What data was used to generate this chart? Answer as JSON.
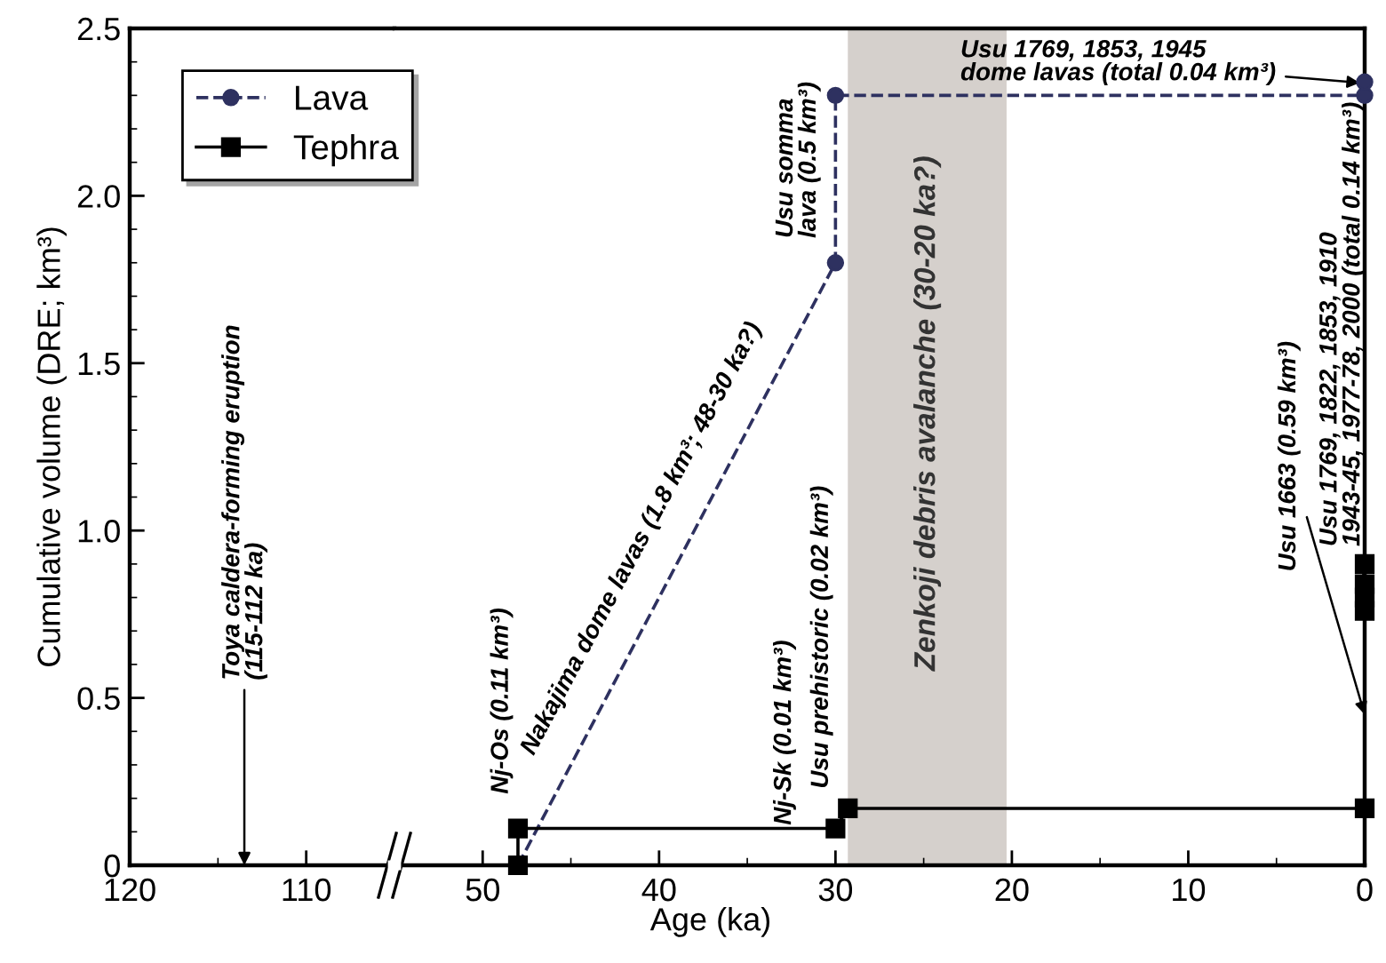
{
  "chart_data": [
    {
      "type": "line",
      "ylabel": "Cumulative volume (DRE; km³)",
      "xlim": [
        120,
        105
      ],
      "xticks": [
        120,
        {
          "value": 115,
          "label": null
        },
        110
      ],
      "ylim": [
        0,
        2.5
      ],
      "yticks": [
        0,
        {
          "value": 0.1,
          "label": null
        },
        {
          "value": 0.2,
          "label": null
        },
        {
          "value": 0.3,
          "label": null
        },
        {
          "value": 0.4,
          "label": null
        },
        0.5,
        {
          "value": 0.6,
          "label": null
        },
        {
          "value": 0.7,
          "label": null
        },
        {
          "value": 0.8,
          "label": null
        },
        {
          "value": 0.9,
          "label": null
        },
        {
          "value": 1.0,
          "label": "1.0"
        },
        {
          "value": 1.1,
          "label": null
        },
        {
          "value": 1.2,
          "label": null
        },
        {
          "value": 1.3,
          "label": null
        },
        {
          "value": 1.4,
          "label": null
        },
        1.5,
        {
          "value": 1.6,
          "label": null
        },
        {
          "value": 1.7,
          "label": null
        },
        {
          "value": 1.8,
          "label": null
        },
        {
          "value": 1.9,
          "label": null
        },
        {
          "value": 2.0,
          "label": "2.0"
        },
        {
          "value": 2.1,
          "label": null
        },
        {
          "value": 2.2,
          "label": null
        },
        {
          "value": 2.3,
          "label": null
        },
        {
          "value": 2.4,
          "label": null
        },
        2.5
      ],
      "annotations": [
        "Toya caldera-forming eruption (115-112 ka)"
      ],
      "grid": false,
      "legend": false
    },
    {
      "type": "line",
      "xlabel": "Age (ka)",
      "xlim": [
        55,
        0
      ],
      "xticks": [
        50,
        {
          "value": 45,
          "label": null
        },
        40,
        {
          "value": 35,
          "label": null
        },
        30,
        {
          "value": 25,
          "label": null
        },
        20,
        {
          "value": 15,
          "label": null
        },
        10,
        {
          "value": 5,
          "label": null
        },
        0
      ],
      "ylim": [
        0,
        2.5
      ],
      "tick_labels": "x",
      "series": [
        {
          "name": "Lava",
          "color": "#2e3160",
          "marker": "circle",
          "line_style": "dashed",
          "x": [
            48,
            30,
            30,
            0,
            0
          ],
          "values": [
            0,
            1.8,
            2.3,
            2.3,
            2.34
          ]
        },
        {
          "name": "Tephra",
          "color": "#000000",
          "marker": "square",
          "line_style": "solid",
          "x": [
            48,
            48,
            30,
            29.3,
            0,
            0,
            0,
            0,
            0
          ],
          "values": [
            0,
            0.11,
            0.11,
            0.17,
            0.17,
            0.76,
            0.8,
            0.84,
            0.9
          ]
        }
      ],
      "bands": [
        {
          "axis": "x",
          "from": 29.3,
          "to": 20.3,
          "label": "Zenkoji debris avalanche (30-20 ka?)",
          "color": "#d5d0cc"
        }
      ],
      "annotations": [
        {
          "text": "Nj-Os (0.11 km³)",
          "x": 48,
          "y": 0.11
        },
        {
          "text": "Nakajima dome lavas (1.8 km³; 48-30 ka?)",
          "x": 39,
          "y": 0.9
        },
        {
          "text": "Nj-Sk (0.01 km³)",
          "x": 30,
          "y": 0.12
        },
        {
          "text": "Usu prehistoric (0.02 km³)",
          "x": 29.3,
          "y": 0.17
        },
        {
          "text": "Usu somma lava (0.5 km³)",
          "x": 30,
          "y": 1.8
        },
        "Usu 1769, 1853, 1945 dome lavas (total 0.04 km³)",
        {
          "text": "Usu 1663 (0.59 km³)",
          "x": 0,
          "y": 0.45
        },
        {
          "text": "Usu 1769, 1822, 1853, 1910 1943-45, 1977-78, 2000 (total 0.14 km³)",
          "x": 0,
          "y": 0.82
        }
      ],
      "grid": false,
      "legend": "top left"
    }
  ]
}
